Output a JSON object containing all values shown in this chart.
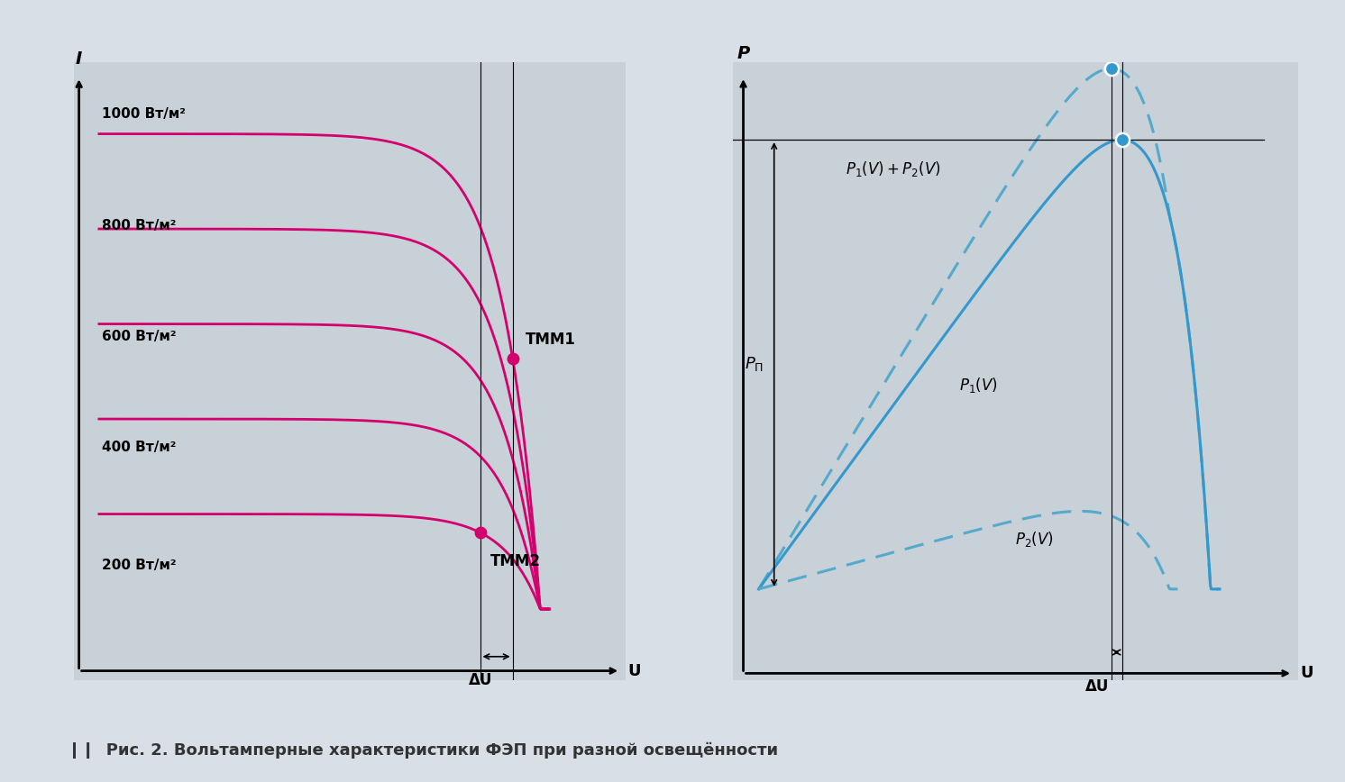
{
  "bg_color": "#c8d0d8",
  "outer_bg": "#d8dfe6",
  "curve_color_left": "#d4006e",
  "curve_color_right_solid": "#3399cc",
  "curve_color_right_dashed": "#55aacc",
  "irradiance_labels": [
    "1000 Вт/м²",
    "800 Вт/м²",
    "600 Вт/м²",
    "400 Вт/м²",
    "200 Вт/м²"
  ],
  "title_label": "Рис. 2. Вольтамперные характеристики ФЭП при разной освещённости",
  "left_ylabel": "I",
  "right_ylabel": "P",
  "xlabel": "U",
  "tmm1_label": "ТММ1",
  "tmm2_label": "ТММ2",
  "delta_u_label": "ΔU"
}
